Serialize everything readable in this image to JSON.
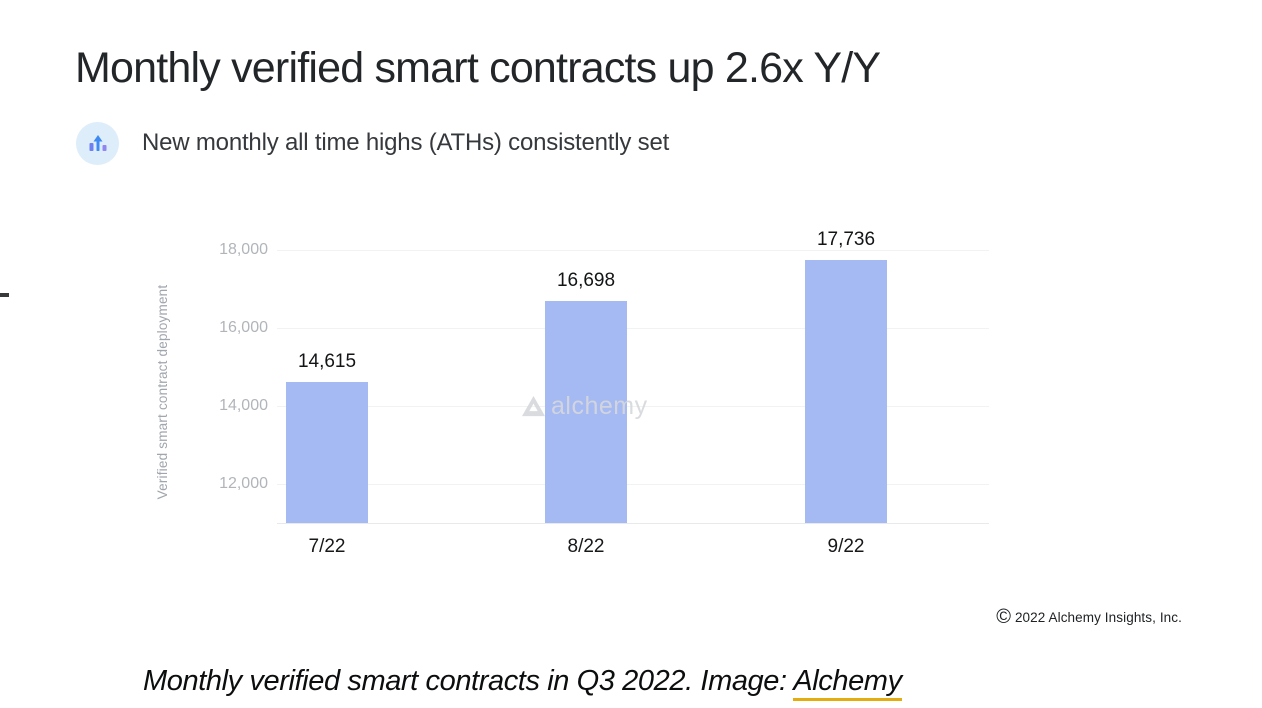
{
  "slide": {
    "title": "Monthly verified smart contracts up 2.6x Y/Y",
    "subtitle": "New monthly all time highs (ATHs) consistently set",
    "watermark_text": "alchemy",
    "copyright_symbol": "©",
    "copyright_text": "2022 Alchemy Insights, Inc."
  },
  "caption": {
    "text": "Monthly verified smart contracts in Q3 2022. Image: ",
    "link_text": "Alchemy"
  },
  "colors": {
    "bar": "#a5b9f3",
    "icon_circle_bg": "#ddedfa",
    "icon_arrow": "#3f8af2",
    "icon_bar_left": "#6e7ff2",
    "icon_bar_right": "#8f86f0",
    "gridline": "#f1f2f3",
    "tick_label": "#b1b5ba",
    "axis_title": "#a0a6ad",
    "watermark": "#d6d8dc",
    "caption_link_underline": "#e3ac0f"
  },
  "chart_data": {
    "type": "bar",
    "title": "",
    "categories": [
      "7/22",
      "8/22",
      "9/22"
    ],
    "values": [
      14615,
      16698,
      17736
    ],
    "value_labels": [
      "14,615",
      "16,698",
      "17,736"
    ],
    "xlabel": "",
    "ylabel": "Verified smart contract deployment",
    "yticks": [
      12000,
      14000,
      16000,
      18000
    ],
    "ytick_labels": [
      "12,000",
      "14,000",
      "16,000",
      "18,000"
    ],
    "ylim": [
      11000,
      18000
    ],
    "grid": true,
    "legend": "none",
    "bar_color": "#a5b9f3"
  }
}
